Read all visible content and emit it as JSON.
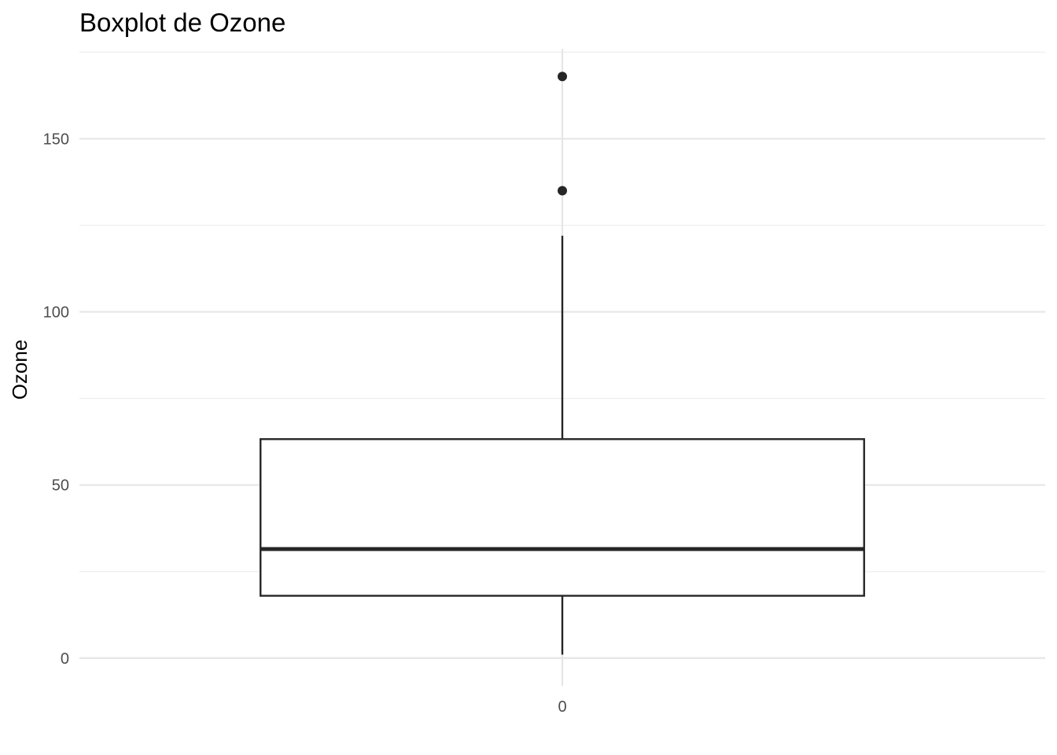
{
  "chart_data": {
    "type": "boxplot",
    "title": "Boxplot de Ozone",
    "xlabel": "",
    "ylabel": "Ozone",
    "categories": [
      "0"
    ],
    "ylim": [
      -8,
      176
    ],
    "y_ticks": [
      0,
      50,
      100,
      150
    ],
    "y_minor_ticks": [
      25,
      75,
      125,
      175
    ],
    "grid": true,
    "legend": "none",
    "boxes": [
      {
        "category": "0",
        "whisker_low": 1,
        "q1": 18,
        "median": 31.5,
        "q3": 63.25,
        "whisker_high": 122,
        "outliers": [
          135,
          168
        ]
      }
    ],
    "colors": {
      "box_stroke": "#262626",
      "box_fill": "#ffffff",
      "outlier": "#262626",
      "grid": "#e6e6e6",
      "tick_text": "#4d4d4d"
    }
  }
}
